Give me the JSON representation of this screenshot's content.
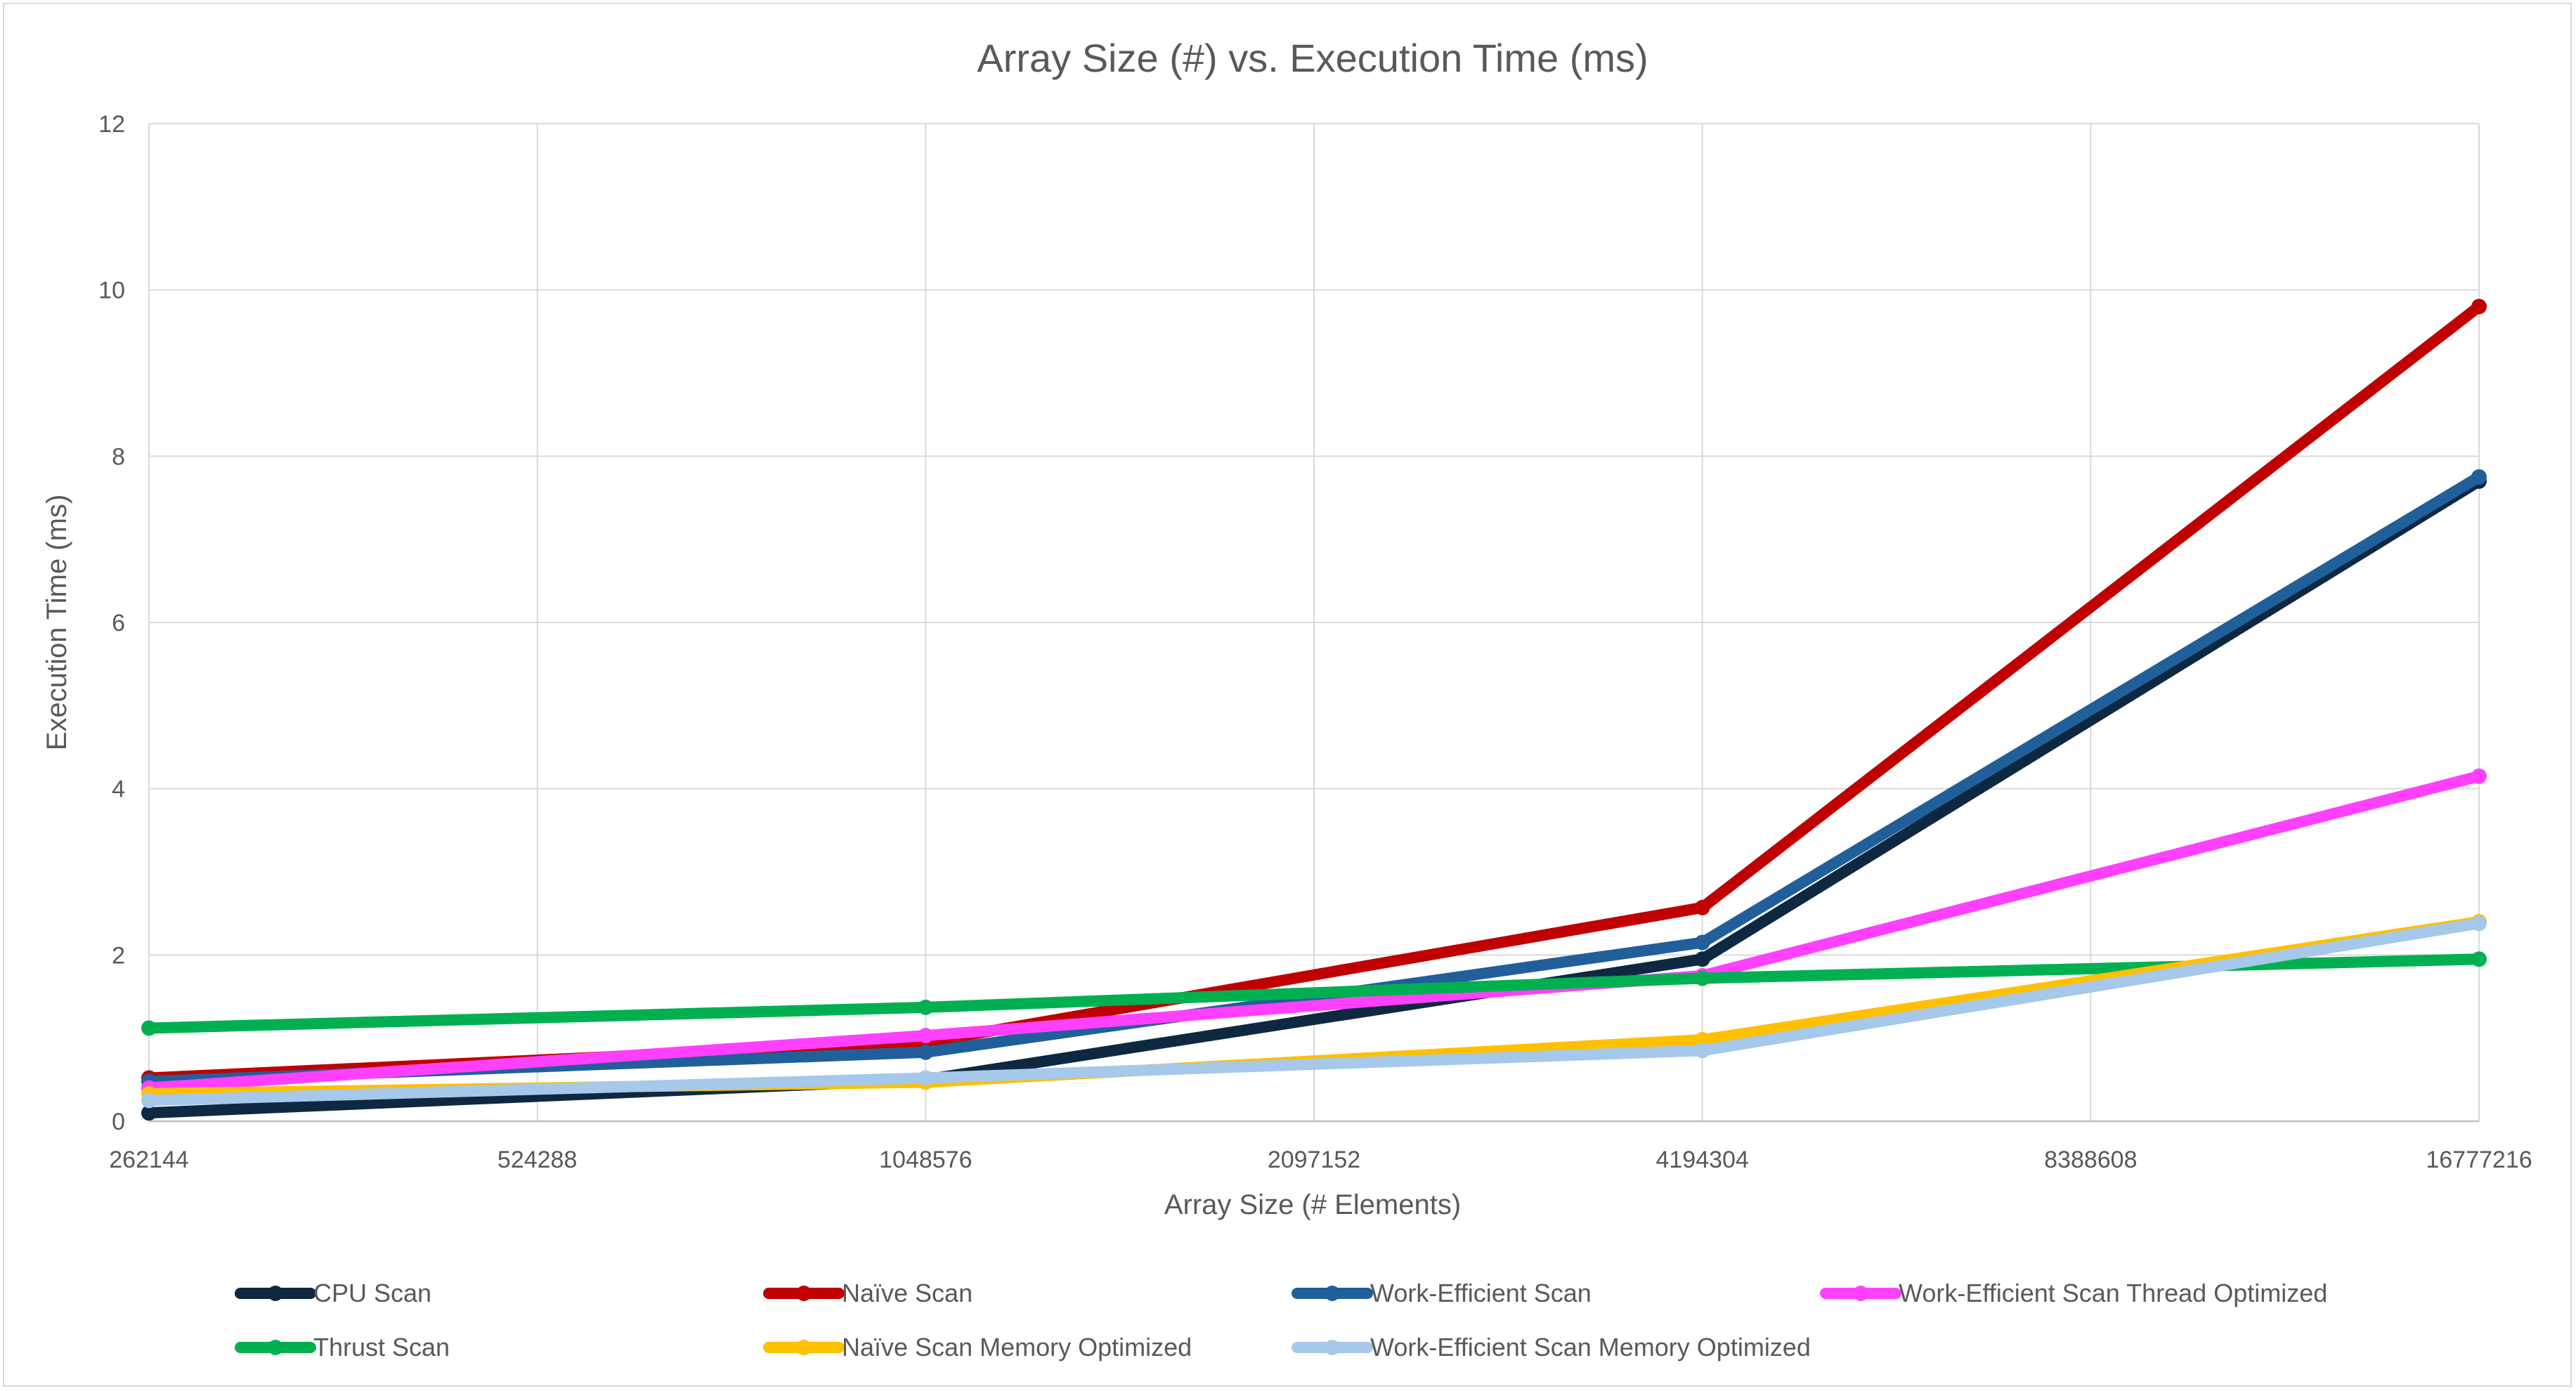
{
  "chart_data": {
    "type": "line",
    "title": "Array Size (#) vs. Execution Time (ms)",
    "xlabel": "Array Size (# Elements)",
    "ylabel": "Execution Time (ms)",
    "categories": [
      "262144",
      "524288",
      "1048576",
      "2097152",
      "4194304",
      "8388608",
      "16777216"
    ],
    "ylim": [
      0,
      12
    ],
    "yticks": [
      "0",
      "2",
      "4",
      "6",
      "8",
      "10",
      "12"
    ],
    "grid": true,
    "legend_position": "bottom",
    "series": [
      {
        "name": "CPU Scan",
        "color": "#0e2841",
        "points": [
          {
            "x": "262144",
            "y": 0.1
          },
          {
            "x": "1048576",
            "y": 0.5
          },
          {
            "x": "4194304",
            "y": 1.95
          },
          {
            "x": "16777216",
            "y": 7.7
          }
        ]
      },
      {
        "name": "Naïve Scan",
        "color": "#c00000",
        "points": [
          {
            "x": "262144",
            "y": 0.52
          },
          {
            "x": "1048576",
            "y": 0.95
          },
          {
            "x": "4194304",
            "y": 2.57
          },
          {
            "x": "16777216",
            "y": 9.8
          }
        ]
      },
      {
        "name": "Work-Efficient Scan",
        "color": "#215f9a",
        "points": [
          {
            "x": "262144",
            "y": 0.48
          },
          {
            "x": "1048576",
            "y": 0.83
          },
          {
            "x": "4194304",
            "y": 2.15
          },
          {
            "x": "16777216",
            "y": 7.75
          }
        ]
      },
      {
        "name": "Work-Efficient Scan Thread Optimized",
        "color": "#ff40ff",
        "points": [
          {
            "x": "262144",
            "y": 0.4
          },
          {
            "x": "1048576",
            "y": 1.03
          },
          {
            "x": "4194304",
            "y": 1.75
          },
          {
            "x": "16777216",
            "y": 4.15
          }
        ]
      },
      {
        "name": "Thrust Scan",
        "color": "#00b050",
        "points": [
          {
            "x": "262144",
            "y": 1.12
          },
          {
            "x": "1048576",
            "y": 1.37
          },
          {
            "x": "4194304",
            "y": 1.72
          },
          {
            "x": "16777216",
            "y": 1.95
          }
        ]
      },
      {
        "name": "Naïve Scan Memory Optimized",
        "color": "#ffc000",
        "points": [
          {
            "x": "262144",
            "y": 0.33
          },
          {
            "x": "1048576",
            "y": 0.47
          },
          {
            "x": "4194304",
            "y": 0.98
          },
          {
            "x": "16777216",
            "y": 2.4
          }
        ]
      },
      {
        "name": "Work-Efficient Scan Memory Optimized",
        "color": "#a6c8ea",
        "points": [
          {
            "x": "262144",
            "y": 0.25
          },
          {
            "x": "1048576",
            "y": 0.52
          },
          {
            "x": "4194304",
            "y": 0.85
          },
          {
            "x": "16777216",
            "y": 2.38
          }
        ]
      }
    ]
  }
}
